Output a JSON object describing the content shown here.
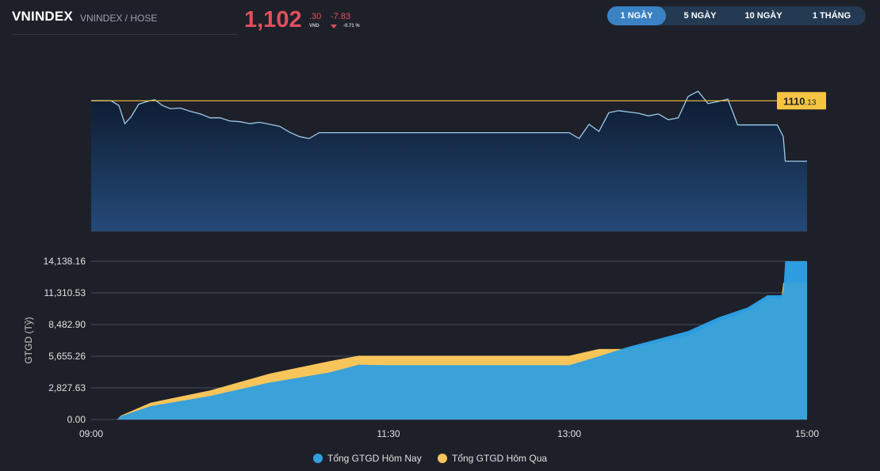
{
  "header": {
    "symbol": "VNINDEX",
    "exchange": "VNINDEX / HOSE",
    "price_main": "1,102",
    "price_decimal": ".30",
    "price_unit": "VND",
    "change": "-7.83",
    "change_pct": "-0.71 %",
    "down_color": "#e0505c"
  },
  "tabs": [
    {
      "label": "1 NGÀY",
      "active": true
    },
    {
      "label": "5 NGÀY",
      "active": false
    },
    {
      "label": "10 NGÀY",
      "active": false
    },
    {
      "label": "1 THÁNG",
      "active": false
    }
  ],
  "chart_data": [
    {
      "type": "line",
      "x_ticks": [
        "09:00",
        "11:30",
        "13:00",
        "15:00"
      ],
      "reference_price": {
        "int": "1110",
        "dec": ".13",
        "value": 1110.13,
        "color": "#f5c542"
      },
      "y_range": [
        1090,
        1112
      ],
      "series": [
        {
          "x": [
            "09:00",
            "09:10",
            "09:14",
            "09:17",
            "09:20",
            "09:24",
            "09:28",
            "09:32",
            "09:36",
            "09:40",
            "09:45",
            "09:50",
            "09:55",
            "10:00",
            "10:05",
            "10:10",
            "10:15",
            "10:20",
            "10:25",
            "10:30",
            "10:35",
            "10:40",
            "10:45",
            "10:50",
            "10:55",
            "11:00",
            "11:05",
            "11:10",
            "11:15",
            "11:20",
            "11:25",
            "11:30",
            "13:00",
            "13:05",
            "13:10",
            "13:15",
            "13:20",
            "13:25",
            "13:30",
            "13:35",
            "13:40",
            "13:45",
            "13:50",
            "13:55",
            "14:00",
            "14:05",
            "14:10",
            "14:15",
            "14:20",
            "14:25",
            "14:30",
            "14:35",
            "14:40",
            "14:45",
            "14:48",
            "14:49",
            "14:50",
            "15:00"
          ],
          "values": [
            1110.13,
            1110.13,
            1109.4,
            1106.6,
            1107.6,
            1109.6,
            1110.0,
            1110.3,
            1109.4,
            1108.9,
            1109.0,
            1108.5,
            1108.1,
            1107.5,
            1107.5,
            1107.0,
            1106.9,
            1106.6,
            1106.8,
            1106.5,
            1106.2,
            1105.3,
            1104.6,
            1104.3,
            1105.2,
            1105.2,
            1105.2,
            1105.2,
            1105.2,
            1105.2,
            1105.2,
            1105.2,
            1105.2,
            1104.3,
            1106.5,
            1105.4,
            1108.3,
            1108.6,
            1108.4,
            1108.2,
            1107.8,
            1108.1,
            1107.2,
            1107.5,
            1110.8,
            1111.6,
            1109.7,
            1110.0,
            1110.4,
            1106.4,
            1106.4,
            1106.4,
            1106.4,
            1106.4,
            1104.6,
            1100.8,
            1100.8,
            1100.8
          ],
          "color": "#9ccbec"
        }
      ]
    },
    {
      "type": "area",
      "ylabel": "GTGD (Tỷ)",
      "y_ticks": [
        "0.00",
        "2,827.63",
        "5,655.26",
        "8,482.90",
        "11,310.53",
        "14,138.16"
      ],
      "ylim": [
        0,
        14138.16
      ],
      "x_ticks": [
        "09:00",
        "11:30",
        "13:00",
        "15:00"
      ],
      "series": [
        {
          "name": "Tổng GTGD Hôm Nay",
          "color": "#2f9fe0",
          "x": [
            "09:00",
            "09:13",
            "09:15",
            "09:30",
            "10:00",
            "10:30",
            "11:00",
            "11:15",
            "11:30",
            "13:00",
            "13:15",
            "13:30",
            "14:00",
            "14:15",
            "14:30",
            "14:40",
            "14:45",
            "14:47",
            "14:48",
            "14:49",
            "15:00"
          ],
          "values": [
            0,
            0,
            300,
            1200,
            2100,
            3300,
            4200,
            4900,
            4850,
            4850,
            5650,
            6500,
            7900,
            9100,
            10000,
            11100,
            11100,
            11100,
            11400,
            14138,
            14138
          ]
        },
        {
          "name": "Tổng GTGD Hôm Qua",
          "color": "#f7c55a",
          "x": [
            "09:00",
            "09:13",
            "09:15",
            "09:30",
            "10:00",
            "10:30",
            "11:00",
            "11:15",
            "11:30",
            "13:00",
            "13:15",
            "13:30",
            "14:00",
            "14:15",
            "14:30",
            "14:40",
            "14:45",
            "14:47",
            "14:48",
            "14:49",
            "15:00"
          ],
          "values": [
            0,
            0,
            350,
            1500,
            2600,
            4100,
            5200,
            5700,
            5700,
            5700,
            6300,
            6300,
            7500,
            8700,
            9700,
            10800,
            10800,
            10800,
            12200,
            12200,
            12200
          ]
        }
      ]
    }
  ]
}
